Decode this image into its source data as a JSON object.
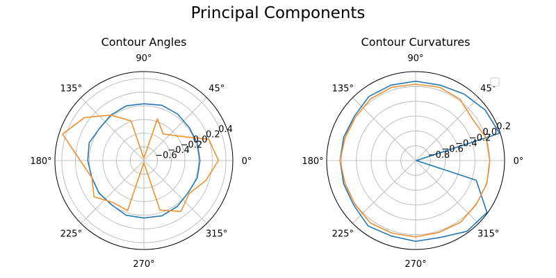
{
  "figure": {
    "title": "Principal Components"
  },
  "chart_data": [
    {
      "type": "polar-line",
      "title": "Contour Angles",
      "theta_ticks": [
        "0°",
        "45°",
        "90°",
        "135°",
        "180°",
        "225°",
        "270°",
        "315°"
      ],
      "r_ticks": [
        "−0.6",
        "−0.4",
        "−0.2",
        "0.0",
        "0.2",
        "0.4"
      ],
      "r_tick_values": [
        -0.6,
        -0.4,
        -0.2,
        0.0,
        0.2,
        0.4
      ],
      "rlim": [
        -0.8,
        0.5
      ],
      "theta_deg": [
        0,
        18,
        36,
        54,
        72,
        90,
        108,
        126,
        144,
        162,
        180,
        198,
        216,
        234,
        252,
        270,
        288,
        306,
        324,
        342,
        360
      ],
      "grid": true,
      "legend": "none",
      "series": [
        {
          "color": "#1f77b4",
          "r": [
            0.02,
            0.02,
            0.02,
            0.04,
            0.05,
            0.03,
            0.04,
            0.02,
            0.0,
            0.04,
            0.02,
            0.0,
            0.01,
            0.0,
            0.04,
            0.04,
            0.05,
            0.03,
            0.0,
            0.02,
            0.02
          ]
        },
        {
          "color": "#f28e2b",
          "r": [
            0.29,
            0.2,
            -0.19,
            -0.32,
            -0.16,
            -0.77,
            -0.19,
            0.02,
            0.27,
            0.45,
            0.13,
            0.0,
            0.1,
            -0.04,
            -0.03,
            -0.77,
            -0.04,
            0.12,
            0.02,
            0.15,
            0.29
          ]
        }
      ]
    },
    {
      "type": "polar-line",
      "title": "Contour Curvatures",
      "theta_ticks": [
        "0°",
        "45°",
        "90°",
        "135°",
        "180°",
        "225°",
        "270°",
        "315°"
      ],
      "r_ticks": [
        "−0.8",
        "−0.6",
        "−0.4",
        "−0.2",
        "0.0",
        "0.2"
      ],
      "r_tick_values": [
        -0.8,
        -0.6,
        -0.4,
        -0.2,
        0.0,
        0.2
      ],
      "rlim": [
        -1.0,
        0.2
      ],
      "theta_deg": [
        0,
        18,
        36,
        54,
        72,
        90,
        108,
        126,
        144,
        162,
        180,
        198,
        216,
        234,
        252,
        270,
        288,
        306,
        324,
        342,
        360
      ],
      "grid": true,
      "legend": "top-right (empty)",
      "series": [
        {
          "color": "#1f77b4",
          "r": [
            -0.99,
            0.19,
            0.16,
            0.11,
            0.07,
            0.07,
            0.07,
            0.07,
            0.02,
            0.02,
            0.02,
            0.02,
            0.03,
            0.09,
            0.07,
            0.09,
            0.09,
            0.18,
            0.19,
            -0.14,
            -0.99
          ]
        },
        {
          "color": "#f28e2b",
          "r": [
            0.0,
            0.0,
            -0.05,
            0.02,
            0.04,
            0.03,
            0.04,
            0.03,
            0.0,
            0.0,
            0.02,
            0.0,
            0.01,
            0.04,
            0.03,
            0.03,
            0.02,
            0.03,
            0.01,
            0.01,
            0.0
          ]
        }
      ]
    }
  ]
}
